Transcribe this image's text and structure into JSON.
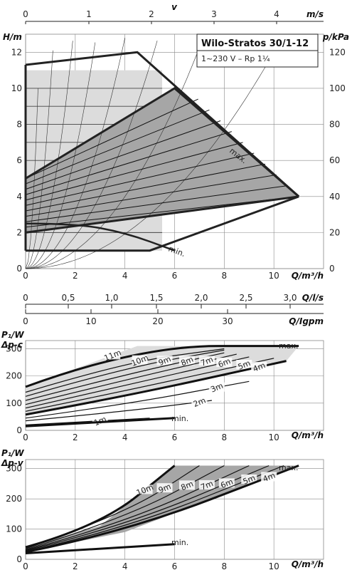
{
  "title": "Wilo-Stratos 30/1-12",
  "subtitle": "1~230 V – Rp 1¼",
  "colors": {
    "light_fill": "#dcdcdc",
    "dark_fill": "#a6a6a6",
    "outline": "#222222",
    "grid": "#888888",
    "thin_line": "#333333"
  },
  "top_axis": {
    "label_symbol": "v",
    "unit": "m/s",
    "ticks": [
      "0",
      "1",
      "2",
      "3",
      "4"
    ],
    "values": [
      0,
      1,
      2,
      3,
      4
    ]
  },
  "flow_ls_axis": {
    "unit": "Q/l/s",
    "ticks": [
      "0",
      "0,5",
      "1,0",
      "1,5",
      "2,0",
      "2,5",
      "3,0"
    ],
    "values": [
      0,
      0.5,
      1.0,
      1.5,
      2.0,
      2.5,
      3.0
    ]
  },
  "flow_gpm_axis": {
    "unit": "Q/Igpm",
    "ticks": [
      "0",
      "10",
      "20",
      "30"
    ],
    "values": [
      0,
      10,
      20,
      30
    ]
  },
  "chart_data": [
    {
      "id": "head",
      "type": "line",
      "xlabel": "Q/m³/h",
      "ylabel": "H/m",
      "ylabel_right": "p/kPa",
      "xlim": [
        0,
        12
      ],
      "ylim": [
        0,
        13
      ],
      "x_ticks": [
        "0",
        "2",
        "4",
        "6",
        "8",
        "10"
      ],
      "y_ticks": [
        "0",
        "2",
        "4",
        "6",
        "8",
        "10",
        "12"
      ],
      "y_right_ticks": [
        "0",
        "20",
        "40",
        "60",
        "80",
        "100",
        "120"
      ],
      "grid": true,
      "outer_envelope": [
        [
          0,
          11.3
        ],
        [
          4.5,
          12
        ],
        [
          6.5,
          10
        ],
        [
          8.5,
          8
        ],
        [
          10.5,
          5.5
        ],
        [
          11.0,
          4.0
        ],
        [
          8.0,
          3.2
        ],
        [
          4.0,
          2.5
        ],
        [
          0,
          2.2
        ]
      ],
      "light_region": [
        [
          0,
          1
        ],
        [
          0,
          11
        ],
        [
          5.5,
          11
        ],
        [
          5.5,
          1
        ]
      ],
      "dark_region": [
        [
          0,
          5
        ],
        [
          6,
          10
        ],
        [
          11,
          4
        ],
        [
          0,
          2
        ]
      ],
      "label_max": "max.",
      "label_min": "min.",
      "min_curve": [
        [
          0,
          2.5
        ],
        [
          2,
          2.5
        ],
        [
          4,
          2.0
        ],
        [
          6,
          1.0
        ]
      ],
      "bottom_line": [
        [
          0,
          1
        ],
        [
          5,
          1
        ],
        [
          6,
          1.5
        ],
        [
          11,
          4
        ]
      ],
      "system_curve_count": 8,
      "control_lines_count": 10
    },
    {
      "id": "power_dpc",
      "type": "line",
      "xlabel": "Q/m³/h",
      "ylabel": "P₁/W",
      "mode_label": "Δp-c",
      "xlim": [
        0,
        12
      ],
      "ylim": [
        0,
        330
      ],
      "x_ticks": [
        "0",
        "2",
        "4",
        "6",
        "8",
        "10"
      ],
      "y_ticks": [
        "0",
        "100",
        "200",
        "300"
      ],
      "grid": true,
      "label_max": "max.",
      "label_min": "min.",
      "series": [
        {
          "name": "11m",
          "label_x": 3.5,
          "points": [
            [
              0,
              160
            ],
            [
              4.5,
              310
            ],
            [
              11.0,
              310
            ]
          ]
        },
        {
          "name": "10m",
          "label_x": 4.6,
          "points": [
            [
              0,
              140
            ],
            [
              4,
              250
            ],
            [
              8,
              300
            ]
          ]
        },
        {
          "name": "9m",
          "label_x": 5.6,
          "points": [
            [
              0,
              125
            ],
            [
              4,
              230
            ],
            [
              8,
              295
            ]
          ]
        },
        {
          "name": "8m",
          "label_x": 6.5,
          "points": [
            [
              0,
              110
            ],
            [
              4,
              205
            ],
            [
              8,
              285
            ]
          ]
        },
        {
          "name": "7m",
          "label_x": 7.3,
          "points": [
            [
              0,
              95
            ],
            [
              4,
              185
            ],
            [
              8.5,
              280
            ]
          ]
        },
        {
          "name": "6m",
          "label_x": 8.0,
          "points": [
            [
              0,
              82
            ],
            [
              4,
              165
            ],
            [
              9,
              270
            ]
          ]
        },
        {
          "name": "5m",
          "label_x": 8.8,
          "points": [
            [
              0,
              70
            ],
            [
              4,
              145
            ],
            [
              10,
              265
            ]
          ]
        },
        {
          "name": "4m",
          "label_x": 9.4,
          "points": [
            [
              0,
              58
            ],
            [
              4,
              125
            ],
            [
              10.5,
              255
            ]
          ]
        },
        {
          "name": "3m",
          "label_x": 7.7,
          "points": [
            [
              0,
              45
            ],
            [
              4,
              95
            ],
            [
              9,
              180
            ]
          ]
        },
        {
          "name": "2m",
          "label_x": 7.0,
          "points": [
            [
              0,
              35
            ],
            [
              4,
              70
            ],
            [
              7.5,
              110
            ]
          ]
        },
        {
          "name": "1m",
          "label_x": 3.0,
          "points": [
            [
              0,
              20
            ],
            [
              5,
              45
            ]
          ]
        }
      ],
      "min_curve": [
        [
          0,
          15
        ],
        [
          6,
          45
        ]
      ]
    },
    {
      "id": "power_dpv",
      "type": "line",
      "xlabel": "Q/m³/h",
      "ylabel": "P₁/W",
      "mode_label": "Δp-v",
      "xlim": [
        0,
        12
      ],
      "ylim": [
        0,
        330
      ],
      "x_ticks": [
        "0",
        "2",
        "4",
        "6",
        "8",
        "10"
      ],
      "y_ticks": [
        "0",
        "100",
        "200",
        "300"
      ],
      "grid": true,
      "label_max": "max.",
      "label_min": "min.",
      "series": [
        {
          "name": "10m",
          "label_x": 4.8,
          "points": [
            [
              0,
              40
            ],
            [
              3,
              110
            ],
            [
              6,
              310
            ]
          ]
        },
        {
          "name": "9m",
          "label_x": 5.6,
          "points": [
            [
              0,
              35
            ],
            [
              4,
              150
            ],
            [
              7,
              310
            ]
          ]
        },
        {
          "name": "8m",
          "label_x": 6.5,
          "points": [
            [
              0,
              32
            ],
            [
              4,
              135
            ],
            [
              8,
              310
            ]
          ]
        },
        {
          "name": "7m",
          "label_x": 7.3,
          "points": [
            [
              0,
              30
            ],
            [
              4,
              120
            ],
            [
              9,
              310
            ]
          ]
        },
        {
          "name": "6m",
          "label_x": 8.1,
          "points": [
            [
              0,
              28
            ],
            [
              4,
              110
            ],
            [
              9.8,
              310
            ]
          ]
        },
        {
          "name": "5m",
          "label_x": 9.0,
          "points": [
            [
              0,
              26
            ],
            [
              4,
              100
            ],
            [
              10.4,
              310
            ]
          ]
        },
        {
          "name": "4m",
          "label_x": 9.8,
          "points": [
            [
              0,
              24
            ],
            [
              4,
              90
            ],
            [
              11,
              310
            ]
          ]
        }
      ],
      "min_curve": [
        [
          0,
          20
        ],
        [
          6,
          50
        ]
      ]
    }
  ]
}
